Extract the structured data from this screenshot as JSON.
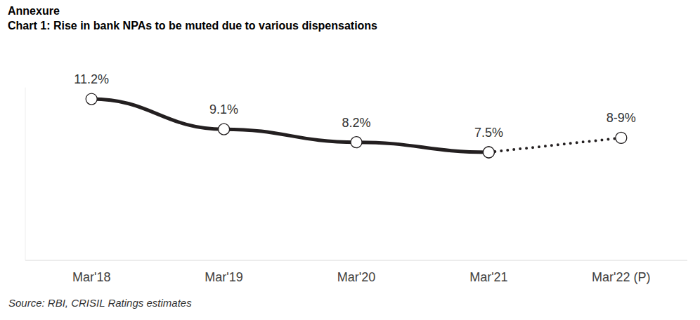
{
  "chart_data": {
    "type": "line",
    "annotations": [
      "Annexure"
    ],
    "title": "Chart 1: Rise in bank NPAs to be muted due to various dispensations",
    "source": "Source: RBI, CRISIL Ratings estimates",
    "categories": [
      "Mar'18",
      "Mar'19",
      "Mar'20",
      "Mar'21",
      "Mar'22 (P)"
    ],
    "series": [
      {
        "values": [
          11.2,
          9.1,
          8.2,
          7.5,
          null
        ],
        "value_labels": [
          "11.2%",
          "9.1%",
          "8.2%",
          "7.5%",
          null
        ],
        "color": "#231f20",
        "line_style": "solid",
        "marker": "circle"
      },
      {
        "values": [
          null,
          null,
          null,
          7.5,
          8.5
        ],
        "value_labels": [
          null,
          null,
          null,
          null,
          "8-9%"
        ],
        "color": "#231f20",
        "line_style": "dotted",
        "marker": "circle"
      }
    ],
    "ylim": [
      0,
      12
    ],
    "grid": false,
    "data_labels": true,
    "tick_labels": "x"
  }
}
